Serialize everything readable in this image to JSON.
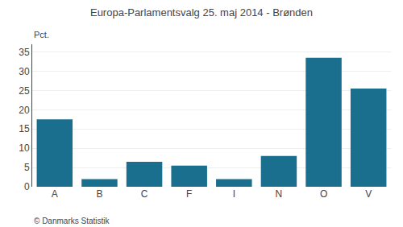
{
  "chart_data": {
    "type": "bar",
    "title": "Europa-Parlamentsvalg 25. maj 2014 - Brønden",
    "categories": [
      "A",
      "B",
      "C",
      "F",
      "I",
      "N",
      "O",
      "V"
    ],
    "values": [
      17.5,
      2.0,
      6.5,
      5.5,
      2.0,
      8.0,
      33.5,
      25.5
    ],
    "color": "#1a6e8e",
    "ylabel": "Pct.",
    "ylim": [
      0,
      37
    ],
    "yticks": [
      0,
      5,
      10,
      15,
      20,
      25,
      30,
      35
    ],
    "grid": true,
    "annotations": [
      "© Danmarks Statistik"
    ]
  }
}
